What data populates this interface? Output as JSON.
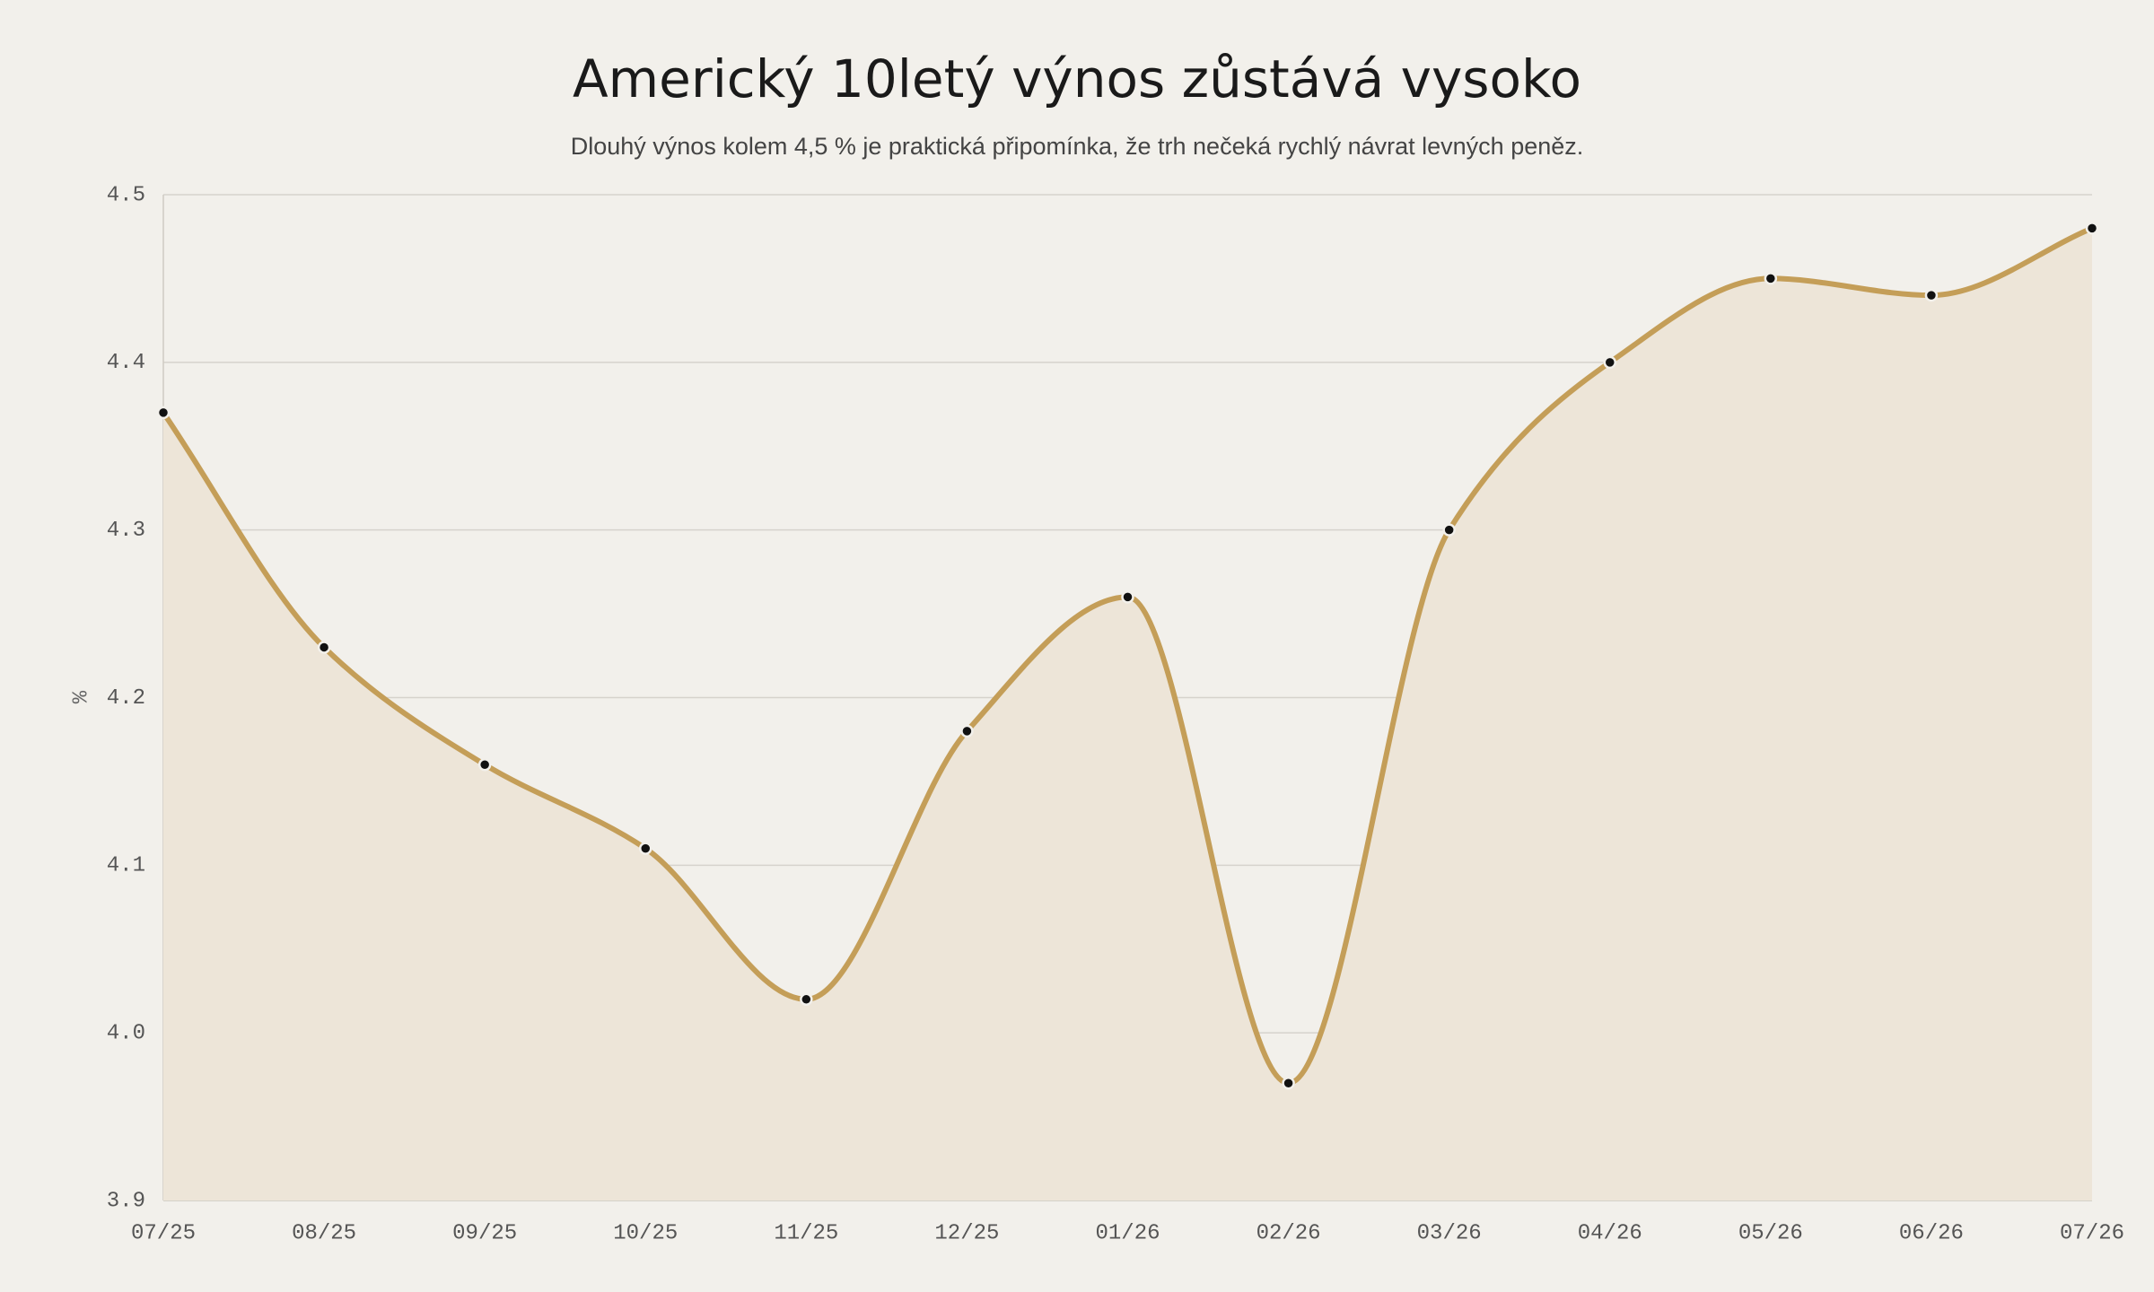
{
  "chart_data": {
    "type": "line",
    "title": "Americký 10letý výnos zůstává vysoko",
    "subtitle": "Dlouhý výnos kolem 4,5 % je praktická připomínka, že trh nečeká rychlý návrat levných peněz.",
    "y_label": "%",
    "categories": [
      "07/25",
      "08/25",
      "09/25",
      "10/25",
      "11/25",
      "12/25",
      "01/26",
      "02/26",
      "03/26",
      "04/26",
      "05/26",
      "06/26",
      "07/26"
    ],
    "values": [
      4.37,
      4.23,
      4.16,
      4.11,
      4.02,
      4.18,
      4.26,
      3.97,
      4.3,
      4.4,
      4.45,
      4.44,
      4.48
    ],
    "color": "#c49e58",
    "area_color": "#ede5d8",
    "ylim": [
      3.9,
      4.5
    ],
    "yticks": [
      3.9,
      {
        "value": 4,
        "label": "4.0"
      },
      4.1,
      4.2,
      4.3,
      4.4,
      4.5
    ],
    "grid": true
  }
}
